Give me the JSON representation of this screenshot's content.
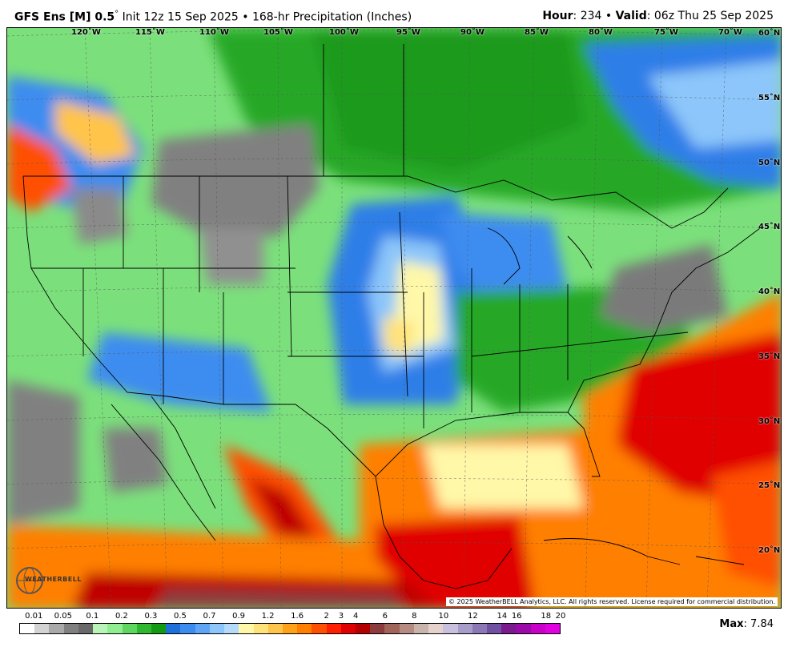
{
  "header": {
    "model_bold": "GFS Ens [M] 0.5",
    "degree": "°",
    "rest": " Init 12z 15 Sep 2025 • 168-hr Precipitation (Inches)",
    "hour_label": "Hour",
    "hour_value": ": 234 • ",
    "valid_label": "Valid",
    "valid_value": ": 06z Thu 25 Sep 2025"
  },
  "map": {
    "longitude_labels": [
      "120˚W",
      "115˚W",
      "110˚W",
      "105˚W",
      "100˚W",
      "95˚W",
      "90˚W",
      "85˚W",
      "80˚W",
      "75˚W",
      "70˚W"
    ],
    "latitude_labels": [
      "60˚N",
      "55˚N",
      "50˚N",
      "45˚N",
      "40˚N",
      "35˚N",
      "30˚N",
      "25˚N",
      "20˚N"
    ],
    "copyright": "© 2025 WeatherBELL Analytics, LLC. All rights reserved. License required for commercial distribution.",
    "logo_text": "WEATHERBELL"
  },
  "legend": {
    "labels": [
      "0.01",
      "0.05",
      "0.1",
      "0.2",
      "0.3",
      "0.5",
      "0.7",
      "0.9",
      "1.2",
      "1.6",
      "2",
      "3",
      "4",
      "6",
      "8",
      "10",
      "12",
      "14",
      "16",
      "18",
      "20"
    ],
    "colors": [
      "#ffffff",
      "#d3d3d3",
      "#a9a9a9",
      "#808080",
      "#696969",
      "#b9f5b9",
      "#90ee90",
      "#5fd65f",
      "#2fb82f",
      "#139a13",
      "#1e6fd9",
      "#3c8cf0",
      "#5fa5f5",
      "#8cc6fa",
      "#b4dcfa",
      "#fff8a8",
      "#ffe27a",
      "#ffc44a",
      "#ffa21a",
      "#ff7f00",
      "#ff4f00",
      "#ff1f00",
      "#e00000",
      "#b40000",
      "#8c3c3c",
      "#a0645a",
      "#b48c82",
      "#c8b4aa",
      "#e6d2cd",
      "#c8c0dc",
      "#a89cc8",
      "#8c78b4",
      "#7050a0",
      "#7a1a8c",
      "#9a0aa8",
      "#c800c8",
      "#e000e0"
    ],
    "max_label": "Max",
    "max_value": ": 7.84"
  }
}
